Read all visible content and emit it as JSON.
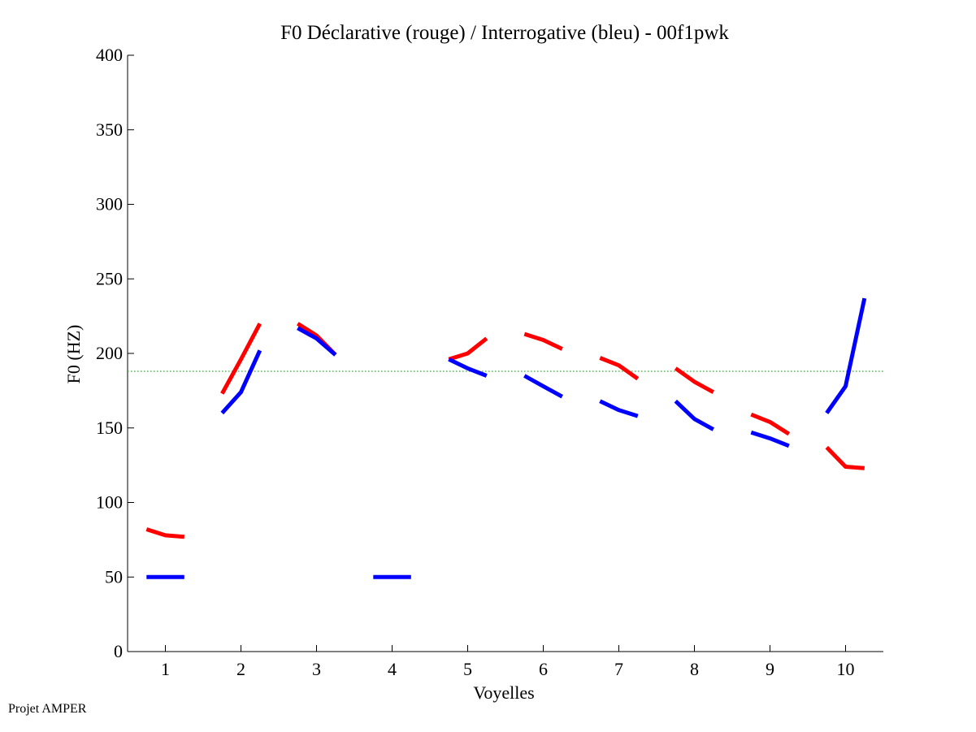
{
  "footer": "Projet AMPER",
  "chart_data": {
    "type": "line",
    "title": "F0 Déclarative (rouge) / Interrogative (bleu) - 00f1pwk",
    "xlabel": "Voyelles",
    "ylabel": "F0 (HZ)",
    "xlim": [
      0.5,
      10.5
    ],
    "ylim": [
      0,
      400
    ],
    "xticks": [
      1,
      2,
      3,
      4,
      5,
      6,
      7,
      8,
      9,
      10
    ],
    "yticks": [
      0,
      50,
      100,
      150,
      200,
      250,
      300,
      350,
      400
    ],
    "reference_line": {
      "y": 188,
      "color": "#00cc00",
      "style": "dotted"
    },
    "series": [
      {
        "color": "#ff0000",
        "segments": [
          [
            [
              0.75,
              82
            ],
            [
              1.0,
              78
            ],
            [
              1.25,
              77
            ]
          ],
          [
            [
              1.75,
              173
            ],
            [
              2.0,
              196
            ],
            [
              2.25,
              220
            ]
          ],
          [
            [
              2.75,
              220
            ],
            [
              3.0,
              212
            ],
            [
              3.25,
              199
            ]
          ],
          [
            [
              4.75,
              196
            ],
            [
              5.0,
              200
            ],
            [
              5.25,
              210
            ]
          ],
          [
            [
              5.75,
              213
            ],
            [
              6.0,
              209
            ],
            [
              6.25,
              203
            ]
          ],
          [
            [
              6.75,
              197
            ],
            [
              7.0,
              192
            ],
            [
              7.25,
              183
            ]
          ],
          [
            [
              7.75,
              190
            ],
            [
              8.0,
              181
            ],
            [
              8.25,
              174
            ]
          ],
          [
            [
              8.75,
              159
            ],
            [
              9.0,
              154
            ],
            [
              9.25,
              146
            ]
          ],
          [
            [
              9.75,
              137
            ],
            [
              10.0,
              124
            ],
            [
              10.25,
              123
            ]
          ]
        ]
      },
      {
        "color": "#0000ff",
        "segments": [
          [
            [
              0.75,
              50
            ],
            [
              1.0,
              50
            ],
            [
              1.25,
              50
            ]
          ],
          [
            [
              1.75,
              160
            ],
            [
              2.0,
              174
            ],
            [
              2.25,
              202
            ]
          ],
          [
            [
              2.75,
              217
            ],
            [
              3.0,
              210
            ],
            [
              3.25,
              199
            ]
          ],
          [
            [
              3.75,
              50
            ],
            [
              4.0,
              50
            ],
            [
              4.25,
              50
            ]
          ],
          [
            [
              4.75,
              196
            ],
            [
              5.0,
              190
            ],
            [
              5.25,
              185
            ]
          ],
          [
            [
              5.75,
              185
            ],
            [
              6.0,
              178
            ],
            [
              6.25,
              171
            ]
          ],
          [
            [
              6.75,
              168
            ],
            [
              7.0,
              162
            ],
            [
              7.25,
              158
            ]
          ],
          [
            [
              7.75,
              168
            ],
            [
              8.0,
              156
            ],
            [
              8.25,
              149
            ]
          ],
          [
            [
              8.75,
              147
            ],
            [
              9.0,
              143
            ],
            [
              9.25,
              138
            ]
          ],
          [
            [
              9.75,
              160
            ],
            [
              10.0,
              178
            ],
            [
              10.25,
              237
            ]
          ]
        ]
      }
    ]
  }
}
